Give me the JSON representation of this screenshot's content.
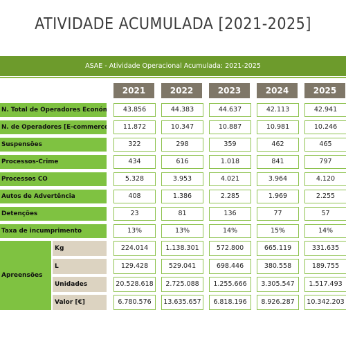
{
  "title": "ATIVIDADE ACUMULADA [2021-2025]",
  "banner": "ASAE - Atividade Operacional Acumulada: 2021-2025",
  "years": [
    "2021",
    "2022",
    "2023",
    "2024",
    "2025"
  ],
  "rows": [
    {
      "label": "N. Total de Operadores Económicos",
      "values": [
        "43.856",
        "44.383",
        "44.637",
        "42.113",
        "42.941"
      ]
    },
    {
      "label": "N. de Operadores [E-commerce]",
      "values": [
        "11.872",
        "10.347",
        "10.887",
        "10.981",
        "10.246"
      ]
    },
    {
      "label": "Suspensões",
      "values": [
        "322",
        "298",
        "359",
        "462",
        "465"
      ]
    },
    {
      "label": "Processos-Crime",
      "values": [
        "434",
        "616",
        "1.018",
        "841",
        "797"
      ]
    },
    {
      "label": "Processos CO",
      "values": [
        "5.328",
        "3.953",
        "4.021",
        "3.964",
        "4.120"
      ]
    },
    {
      "label": "Autos de Advertência",
      "values": [
        "408",
        "1.386",
        "2.285",
        "1.969",
        "2.255"
      ]
    },
    {
      "label": "Detenções",
      "values": [
        "23",
        "81",
        "136",
        "77",
        "57"
      ]
    },
    {
      "label": "Taxa de incumprimento",
      "values": [
        "13%",
        "13%",
        "14%",
        "15%",
        "14%"
      ]
    }
  ],
  "apreensoes": {
    "label": "Apreensões",
    "rows": [
      {
        "label": "Kg",
        "values": [
          "224.014",
          "1.138.301",
          "572.800",
          "665.119",
          "331.635"
        ]
      },
      {
        "label": "L",
        "values": [
          "129.428",
          "529.041",
          "698.446",
          "380.558",
          "189.755"
        ]
      },
      {
        "label": "Unidades",
        "values": [
          "20.528.618",
          "2.725.088",
          "1.255.666",
          "3.305.547",
          "1.517.493"
        ]
      },
      {
        "label": "Valor [€]",
        "values": [
          "6.780.576",
          "13.635.657",
          "6.818.196",
          "8.926.287",
          "10.342.203"
        ]
      }
    ]
  },
  "colors": {
    "banner": "#6d9b2c",
    "label_green": "#7fc241",
    "year_box": "#7f7768",
    "sub_label": "#dcd3c1",
    "cell_border": "#8dc24e"
  }
}
